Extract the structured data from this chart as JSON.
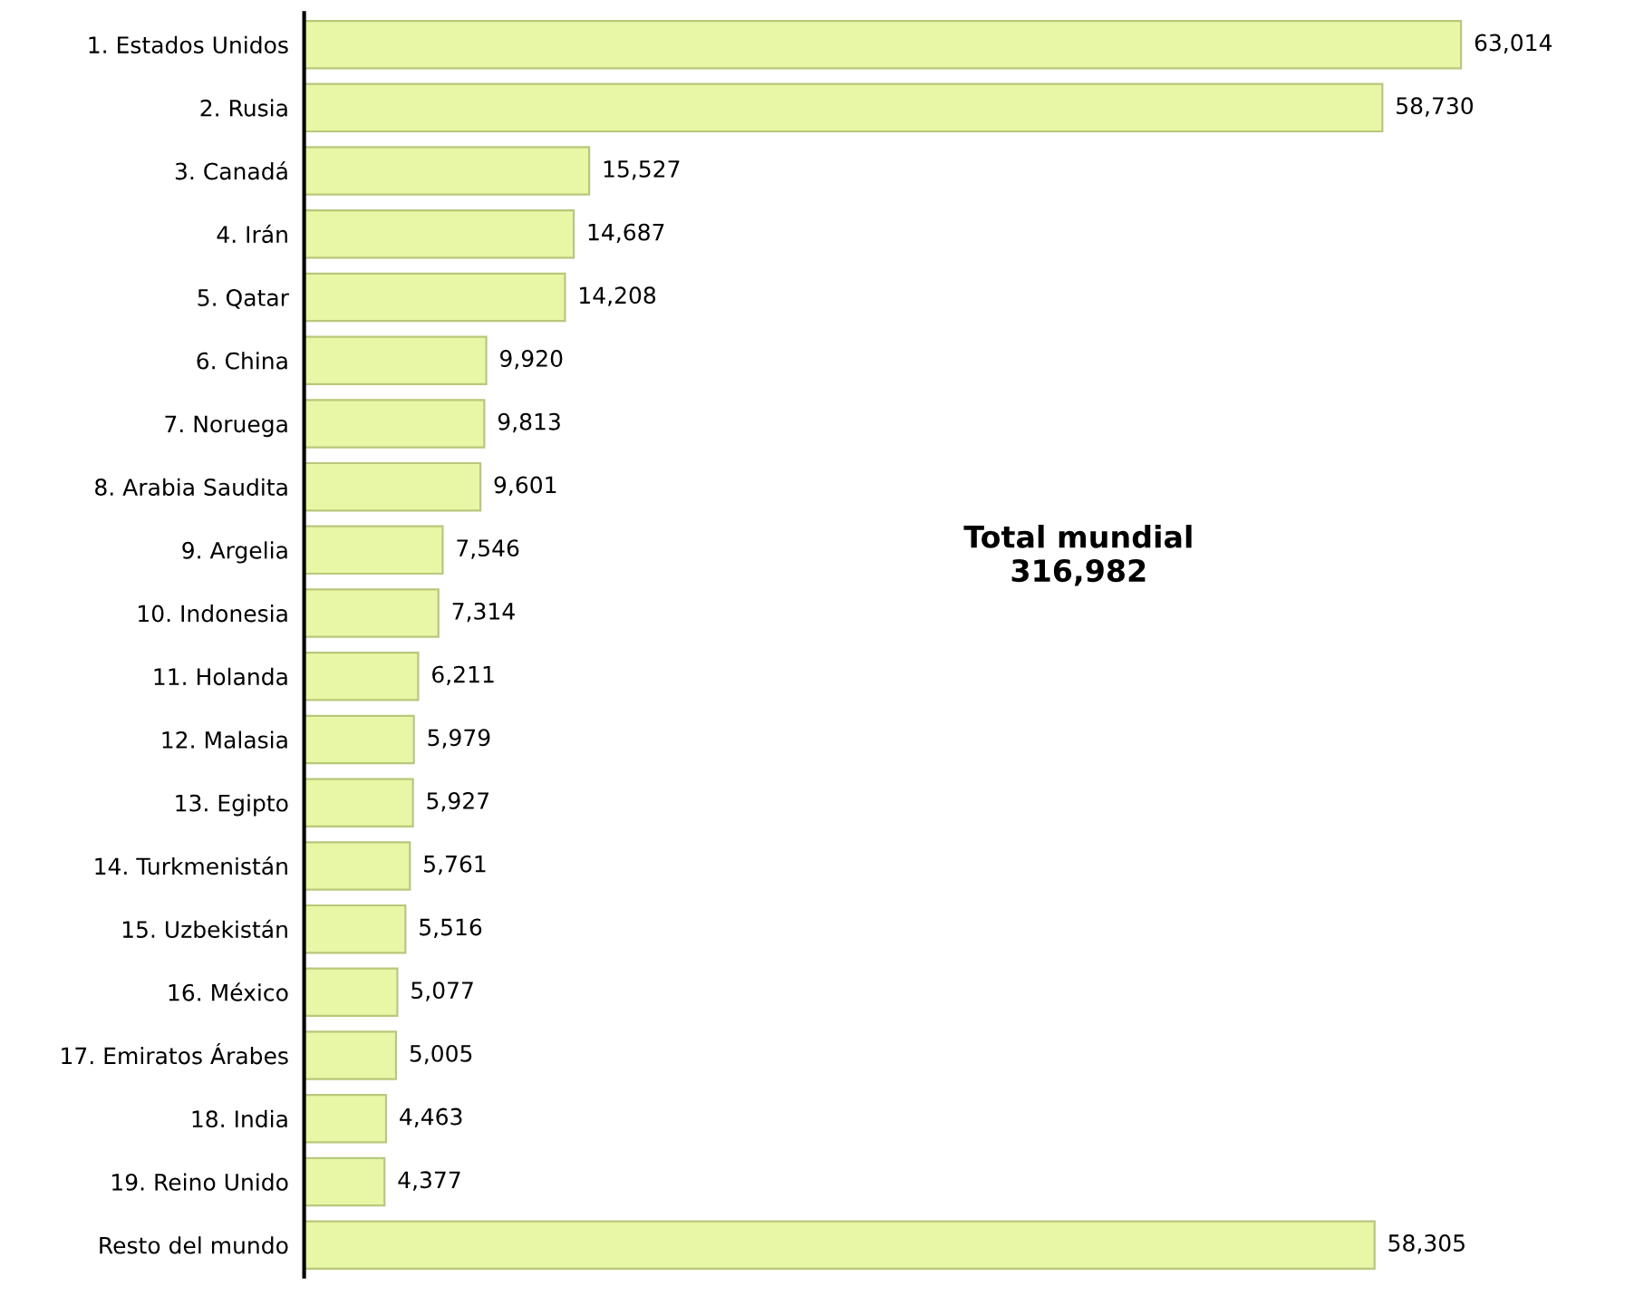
{
  "chart_data": {
    "type": "bar",
    "orientation": "horizontal",
    "categories": [
      "1. Estados Unidos",
      "2. Rusia",
      "3. Canadá",
      "4. Irán",
      "5. Qatar",
      "6. China",
      "7. Noruega",
      "8. Arabia Saudita",
      "9. Argelia",
      "10. Indonesia",
      "11. Holanda",
      "12. Malasia",
      "13. Egipto",
      "14. Turkmenistán",
      "15. Uzbekistán",
      "16. México",
      "17. Emiratos Árabes",
      "18. India",
      "19. Reino Unido",
      "Resto del mundo"
    ],
    "values": [
      63014,
      58730,
      15527,
      14687,
      14208,
      9920,
      9813,
      9601,
      7546,
      7314,
      6211,
      5979,
      5927,
      5761,
      5516,
      5077,
      5005,
      4463,
      4377,
      58305
    ],
    "value_labels": [
      "63,014",
      "58,730",
      "15,527",
      "14,687",
      "14,208",
      "9,920",
      "9,813",
      "9,601",
      "7,546",
      "7,314",
      "6,211",
      "5,979",
      "5,927",
      "5,761",
      "5,516",
      "5,077",
      "5,005",
      "4,463",
      "4,377",
      "58,305"
    ],
    "color": "#e8f7a6",
    "tick_labels": "y",
    "grid": false,
    "legend": false,
    "annotations": [
      "Total mundial\n316,982"
    ]
  }
}
